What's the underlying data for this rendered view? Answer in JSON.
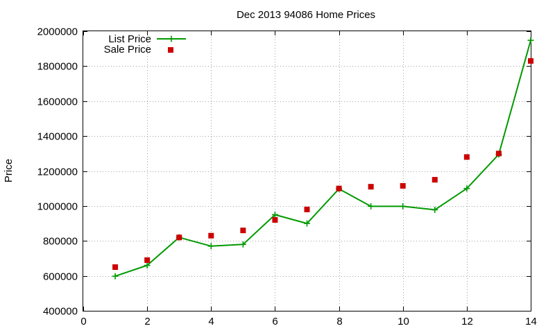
{
  "chart_data": {
    "type": "line",
    "title": "Dec 2013 94086 Home Prices",
    "xlabel": "",
    "ylabel": "Price",
    "xlim": [
      0,
      14
    ],
    "ylim": [
      400000,
      2000000
    ],
    "x_ticks": [
      0,
      2,
      4,
      6,
      8,
      10,
      12,
      14
    ],
    "x_tick_labels": [
      "0",
      "2",
      "4",
      "6",
      "8",
      "10",
      "12",
      "14"
    ],
    "y_ticks": [
      400000,
      600000,
      800000,
      1000000,
      1200000,
      1400000,
      1600000,
      1800000,
      2000000
    ],
    "y_tick_labels": [
      "400000",
      "600000",
      "800000",
      "1000000",
      "1200000",
      "1400000",
      "1600000",
      "1800000",
      "2000000"
    ],
    "grid": true,
    "legend_position": "top-left",
    "series": [
      {
        "name": "List Price",
        "style": "line-with-plus-markers",
        "color": "#009900",
        "x": [
          1,
          2,
          3,
          4,
          5,
          6,
          7,
          8,
          9,
          10,
          11,
          12,
          13,
          14
        ],
        "values": [
          598000,
          660000,
          820000,
          770000,
          780000,
          950000,
          900000,
          1098000,
          998000,
          998000,
          978000,
          1100000,
          1295000,
          1948000
        ]
      },
      {
        "name": "Sale Price",
        "style": "square-markers",
        "color": "#cc0000",
        "x": [
          1,
          2,
          3,
          4,
          5,
          6,
          7,
          8,
          9,
          10,
          11,
          12,
          13,
          14
        ],
        "values": [
          650000,
          690000,
          820000,
          830000,
          860000,
          920000,
          980000,
          1100000,
          1110000,
          1115000,
          1150000,
          1280000,
          1300000,
          1830000
        ]
      }
    ]
  }
}
